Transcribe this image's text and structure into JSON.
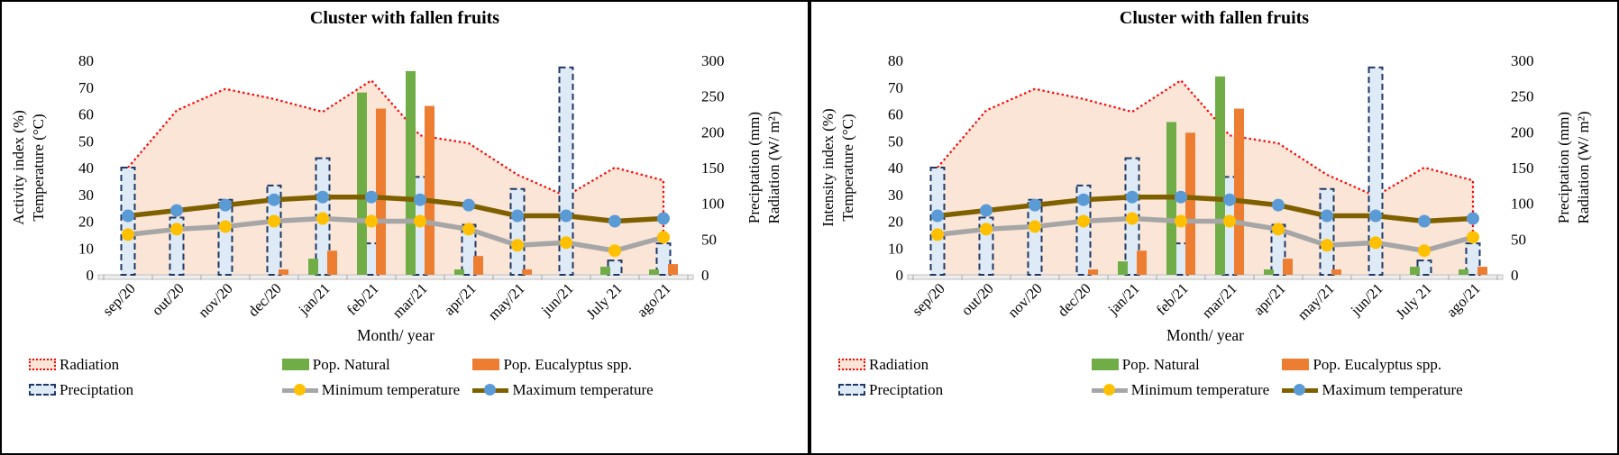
{
  "colors": {
    "radiation_fill": "#FBE5D6",
    "radiation_stroke": "#FF0000",
    "precipitation_fill": "#DEEAF6",
    "precipitation_stroke": "#1F3864",
    "pop_natural": "#70AD47",
    "pop_eucalyptus": "#ED7D31",
    "min_temp_line": "#A6A6A6",
    "min_temp_marker": "#FFC000",
    "max_temp_line": "#7F6000",
    "max_temp_marker": "#5B9BD5",
    "axis_line": "#BFBFBF",
    "axis_band": "#EDEDED",
    "text": "#000000"
  },
  "legend": {
    "items": [
      {
        "key": "radiation",
        "label": "Radiation",
        "swatch": "area"
      },
      {
        "key": "pop_natural",
        "label": "Pop. Natural",
        "swatch": "bar-green"
      },
      {
        "key": "pop_eucalyptus",
        "label": "Pop. Eucalyptus spp.",
        "swatch": "bar-orange"
      },
      {
        "key": "precipitation",
        "label": "Preciptation",
        "swatch": "bar-precip"
      },
      {
        "key": "min_temp",
        "label": "Minimum temperature",
        "swatch": "line-min"
      },
      {
        "key": "max_temp",
        "label": "Maximum temperature",
        "swatch": "line-max"
      }
    ]
  },
  "chart_data": [
    {
      "type": "combo: area + clustered bars + lines",
      "title": "Cluster with fallen fruits",
      "x_label": "Month/ year",
      "y_left_label": [
        "Activity index (%)",
        "Temperature (°C)"
      ],
      "y_right_label": [
        "Preciptation (mm)",
        "Radiation (W/ m²)"
      ],
      "y_left_range": [
        0,
        80
      ],
      "y_left_ticks": [
        0,
        10,
        20,
        30,
        40,
        50,
        60,
        70,
        80
      ],
      "y_right_range": [
        0,
        300
      ],
      "y_right_ticks": [
        0,
        50,
        100,
        150,
        200,
        250,
        300
      ],
      "grid": "off",
      "legend_position": "bottom",
      "categories": [
        "sep/20",
        "out/20",
        "nov/20",
        "dec/20",
        "jan/21",
        "feb/21",
        "mar/21",
        "apr/21",
        "may/21",
        "jun/21",
        "July 21",
        "ago/21"
      ],
      "series": [
        {
          "key": "radiation",
          "name": "Radiation",
          "type": "area",
          "axis": "right",
          "values": [
            150,
            230,
            260,
            246,
            228,
            272,
            195,
            184,
            140,
            110,
            150,
            132
          ]
        },
        {
          "key": "precipitation",
          "name": "Preciptation",
          "type": "bar",
          "axis": "right",
          "values": [
            150,
            80,
            105,
            125,
            163,
            44,
            137,
            70,
            120,
            290,
            20,
            44
          ]
        },
        {
          "key": "pop_natural",
          "name": "Pop. Natural",
          "type": "bar",
          "axis": "left",
          "values": [
            0,
            0,
            0,
            0,
            6,
            68,
            76,
            2,
            0,
            0,
            3,
            2
          ]
        },
        {
          "key": "pop_eucalyptus",
          "name": "Pop. Eucalyptus spp.",
          "type": "bar",
          "axis": "left",
          "values": [
            0,
            0,
            0,
            2,
            9,
            62,
            63,
            7,
            2,
            0,
            0,
            4
          ]
        },
        {
          "key": "min_temp",
          "name": "Minimum temperature",
          "type": "line",
          "axis": "left",
          "values": [
            15,
            17,
            18,
            20,
            21,
            20,
            20,
            17,
            11,
            12,
            9,
            14
          ]
        },
        {
          "key": "max_temp",
          "name": "Maximum temperature",
          "type": "line",
          "axis": "left",
          "values": [
            22,
            24,
            26,
            28,
            29,
            29,
            28,
            26,
            22,
            22,
            20,
            21
          ]
        }
      ]
    },
    {
      "type": "combo: area + clustered bars + lines",
      "title": "Cluster with fallen fruits",
      "x_label": "Month/ year",
      "y_left_label": [
        "Intensity index (%)",
        "Temperature (°C)"
      ],
      "y_right_label": [
        "Preciptation (mm)",
        "Radiation (W/ m²)"
      ],
      "y_left_range": [
        0,
        80
      ],
      "y_left_ticks": [
        0,
        10,
        20,
        30,
        40,
        50,
        60,
        70,
        80
      ],
      "y_right_range": [
        0,
        300
      ],
      "y_right_ticks": [
        0,
        50,
        100,
        150,
        200,
        250,
        300
      ],
      "grid": "off",
      "legend_position": "bottom",
      "categories": [
        "sep/20",
        "out/20",
        "nov/20",
        "dec/20",
        "jan/21",
        "feb/21",
        "mar/21",
        "apr/21",
        "may/21",
        "jun/21",
        "July 21",
        "ago/21"
      ],
      "series": [
        {
          "key": "radiation",
          "name": "Radiation",
          "type": "area",
          "axis": "right",
          "values": [
            150,
            230,
            260,
            246,
            228,
            272,
            195,
            184,
            140,
            110,
            150,
            132
          ]
        },
        {
          "key": "precipitation",
          "name": "Preciptation",
          "type": "bar",
          "axis": "right",
          "values": [
            150,
            80,
            105,
            125,
            163,
            44,
            137,
            70,
            120,
            290,
            20,
            44
          ]
        },
        {
          "key": "pop_natural",
          "name": "Pop. Natural",
          "type": "bar",
          "axis": "left",
          "values": [
            0,
            0,
            0,
            0,
            5,
            57,
            74,
            2,
            0,
            0,
            3,
            2
          ]
        },
        {
          "key": "pop_eucalyptus",
          "name": "Pop. Eucalyptus spp.",
          "type": "bar",
          "axis": "left",
          "values": [
            0,
            0,
            0,
            2,
            9,
            53,
            62,
            6,
            2,
            0,
            0,
            3
          ]
        },
        {
          "key": "min_temp",
          "name": "Minimum temperature",
          "type": "line",
          "axis": "left",
          "values": [
            15,
            17,
            18,
            20,
            21,
            20,
            20,
            17,
            11,
            12,
            9,
            14
          ]
        },
        {
          "key": "max_temp",
          "name": "Maximum temperature",
          "type": "line",
          "axis": "left",
          "values": [
            22,
            24,
            26,
            28,
            29,
            29,
            28,
            26,
            22,
            22,
            20,
            21
          ]
        }
      ]
    }
  ]
}
